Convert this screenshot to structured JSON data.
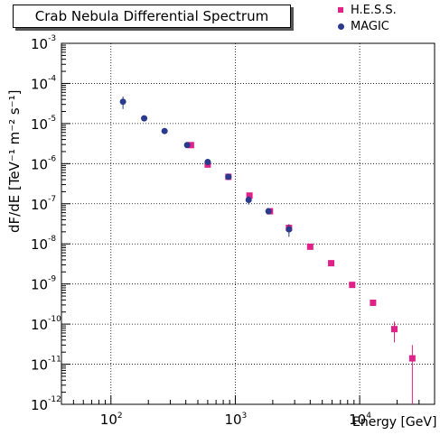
{
  "chart_data": {
    "type": "scatter",
    "title": "Crab Nebula Differential Spectrum",
    "xlabel": "Energy [GeV]",
    "ylabel": "dF/dE [TeV⁻¹ m⁻² s⁻¹]",
    "x_scale": "log",
    "y_scale": "log",
    "xlim": [
      40,
      40000
    ],
    "ylim": [
      1e-12,
      0.001
    ],
    "x_ticks": [
      "10^2",
      "10^3",
      "10^4"
    ],
    "y_ticks": [
      "10^-3",
      "10^-4",
      "10^-5",
      "10^-6",
      "10^-7",
      "10^-8",
      "10^-9",
      "10^-10",
      "10^-11",
      "10^-12"
    ],
    "grid": true,
    "legend_position": "top-right",
    "series": [
      {
        "name": "H.E.S.S.",
        "color": "#e0218a",
        "marker": "square",
        "points": [
          {
            "x": 440,
            "y": 2.9e-06
          },
          {
            "x": 600,
            "y": 9.5e-07
          },
          {
            "x": 880,
            "y": 4.7e-07
          },
          {
            "x": 1300,
            "y": 1.6e-07
          },
          {
            "x": 1900,
            "y": 6.5e-08
          },
          {
            "x": 2700,
            "y": 2.5e-08
          },
          {
            "x": 4000,
            "y": 8.5e-09
          },
          {
            "x": 5900,
            "y": 3.3e-09
          },
          {
            "x": 8700,
            "y": 9.5e-10
          },
          {
            "x": 12800,
            "y": 3.4e-10
          },
          {
            "x": 19000,
            "y": 7.5e-11,
            "err_lo": 4e-11,
            "err_hi": 4e-11
          },
          {
            "x": 26500,
            "y": 1.4e-11,
            "err_lo": 1.38e-11,
            "err_hi": 1.6e-11
          }
        ]
      },
      {
        "name": "MAGIC",
        "color": "#2a3a8c",
        "marker": "circle",
        "points": [
          {
            "x": 125,
            "y": 3.5e-05,
            "err_lo": 1.2e-05,
            "err_hi": 1.2e-05
          },
          {
            "x": 185,
            "y": 1.35e-05
          },
          {
            "x": 270,
            "y": 6.5e-06
          },
          {
            "x": 410,
            "y": 2.9e-06
          },
          {
            "x": 600,
            "y": 1.1e-06
          },
          {
            "x": 880,
            "y": 4.7e-07
          },
          {
            "x": 1280,
            "y": 1.25e-07,
            "err_lo": 3e-08,
            "err_hi": 3e-08
          },
          {
            "x": 1850,
            "y": 6.5e-08
          },
          {
            "x": 2700,
            "y": 2.3e-08,
            "err_lo": 8e-09,
            "err_hi": 8e-09
          }
        ]
      }
    ]
  }
}
